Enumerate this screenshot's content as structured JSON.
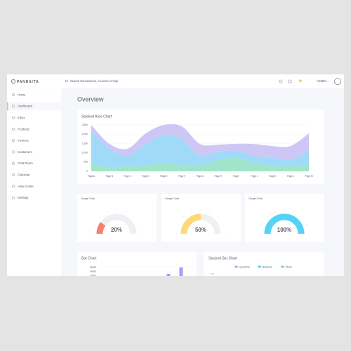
{
  "header": {
    "logo": "PANDAITA",
    "search_placeholder": "Search transactions, invoices or help",
    "user": "ADMIN"
  },
  "sidebar": {
    "items": [
      "Home",
      "Dashboard",
      "Inbox",
      "Products",
      "Invoices",
      "Customers",
      "Chat Room",
      "Calendar",
      "Help Center",
      "Settings"
    ],
    "active": 1
  },
  "page_title": "Overview",
  "area_chart": {
    "type": "area",
    "title": "Stacked Area Chart",
    "categories": [
      "Page A",
      "Page B",
      "Page C",
      "Page D",
      "Page E",
      "Page F",
      "Page G",
      "Page H",
      "Page I",
      "Page J",
      "Page K",
      "Page L",
      "Page M"
    ],
    "series": [
      {
        "color": "#8fe0c0",
        "values": [
          450,
          230,
          270,
          300,
          450,
          340,
          300,
          610,
          720,
          450,
          300,
          270,
          380
        ]
      },
      {
        "color": "#8fd3f7",
        "values": [
          1780,
          980,
          570,
          1170,
          1520,
          1400,
          530,
          450,
          380,
          380,
          420,
          340,
          720
        ]
      },
      {
        "color": "#c5bdf3",
        "values": [
          270,
          270,
          380,
          570,
          530,
          680,
          640,
          380,
          380,
          640,
          640,
          760,
          950
        ]
      }
    ],
    "ylim": [
      0,
      2500
    ],
    "yticks": [
      0,
      500,
      {
        "value": 1000,
        "label": "1,000"
      },
      {
        "value": 1500,
        "label": "1,500"
      },
      {
        "value": 2000,
        "label": "2,000"
      },
      {
        "value": 2500,
        "label": "2,500"
      }
    ]
  },
  "gauges": [
    {
      "type": "gauge",
      "title": "Gauge Chart",
      "value": 20,
      "value_label": "20%",
      "lim": [
        0,
        100
      ],
      "color": "#f5826e"
    },
    {
      "type": "gauge",
      "title": "Gauge Chart",
      "value": 50,
      "value_label": "50%",
      "lim": [
        0,
        100
      ],
      "color": "#fdd97a"
    },
    {
      "type": "gauge",
      "title": "Gauge Chart",
      "value": 100,
      "value_label": "100%",
      "lim": [
        0,
        100
      ],
      "color": "#55d2f5"
    }
  ],
  "bar_chart": {
    "type": "bar",
    "title": "Bar Chart",
    "categories": [
      null,
      null
    ],
    "values": [
      12500,
      20000
    ],
    "color": "#a99cf0",
    "ylim": [
      0,
      20000
    ],
    "yticks": [
      20000,
      15000,
      10000
    ]
  },
  "stacked_bar_chart": {
    "type": "bar",
    "title": "Stacked Bar Chart",
    "legend": [
      {
        "name": "Quarterly",
        "color": "#b9a8f2"
      },
      {
        "name": "Baseline",
        "color": "#55d2f5"
      },
      {
        "name": "Stock",
        "color": "#7fd8b2"
      }
    ]
  }
}
